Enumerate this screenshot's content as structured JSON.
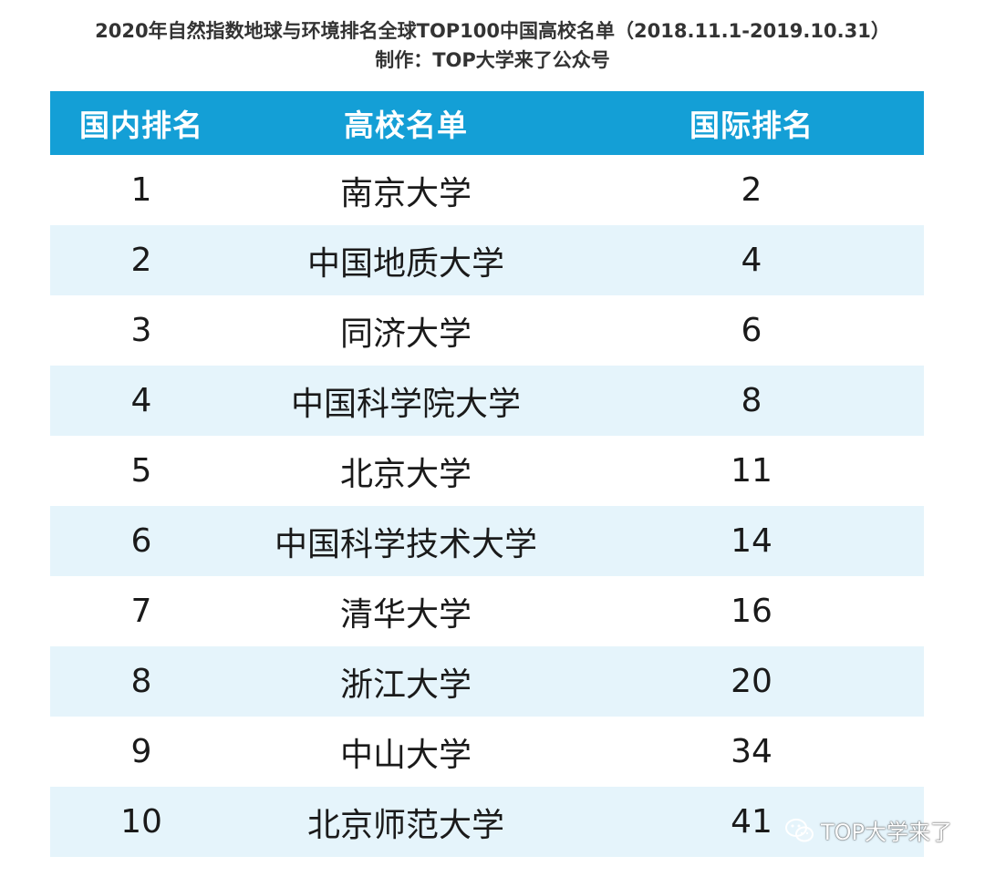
{
  "title": {
    "line1": "2020年自然指数地球与环境排名全球TOP100中国高校名单（2018.11.1-2019.10.31）",
    "line2": "制作：TOP大学来了公众号"
  },
  "table": {
    "headers": [
      "国内排名",
      "高校名单",
      "国际排名"
    ],
    "header_color": "#149fd6",
    "alt_row_color": "#e5f4fb",
    "rows": [
      {
        "domestic": "1",
        "university": "南京大学",
        "international": "2"
      },
      {
        "domestic": "2",
        "university": "中国地质大学",
        "international": "4"
      },
      {
        "domestic": "3",
        "university": "同济大学",
        "international": "6"
      },
      {
        "domestic": "4",
        "university": "中国科学院大学",
        "international": "8"
      },
      {
        "domestic": "5",
        "university": "北京大学",
        "international": "11"
      },
      {
        "domestic": "6",
        "university": "中国科学技术大学",
        "international": "14"
      },
      {
        "domestic": "7",
        "university": "清华大学",
        "international": "16"
      },
      {
        "domestic": "8",
        "university": "浙江大学",
        "international": "20"
      },
      {
        "domestic": "9",
        "university": "中山大学",
        "international": "34"
      },
      {
        "domestic": "10",
        "university": "北京师范大学",
        "international": "41"
      }
    ]
  },
  "watermark": {
    "icon": "wechat-icon",
    "text": "TOP大学来了"
  }
}
